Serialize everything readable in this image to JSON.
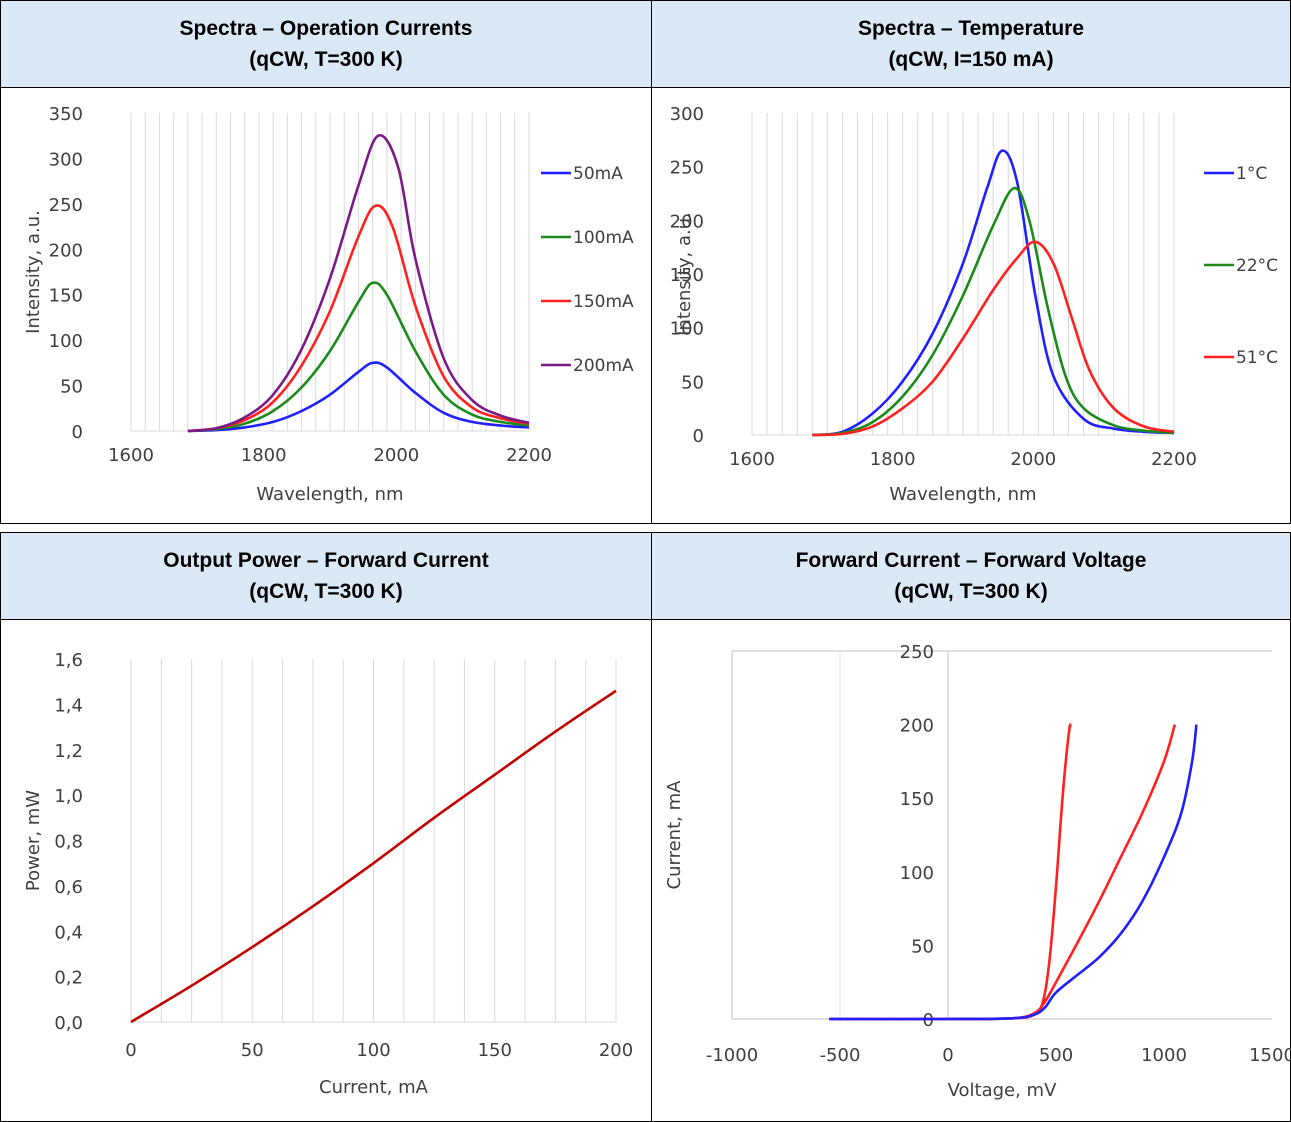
{
  "panels": [
    {
      "title": "Spectra – Operation Currents",
      "subtitle": "(qCW, T=300 K)"
    },
    {
      "title": "Spectra – Temperature",
      "subtitle": "(qCW, I=150 mA)"
    },
    {
      "title": "Output Power – Forward Current",
      "subtitle": "(qCW, T=300 K)"
    },
    {
      "title": "Forward Current – Forward Voltage",
      "subtitle": "(qCW, T=300 K)"
    }
  ],
  "chart_data": [
    {
      "type": "line",
      "xlabel": "Wavelength, nm",
      "ylabel": "Intensity, a.u.",
      "xlim": [
        1600,
        2300
      ],
      "ylim": [
        0,
        350
      ],
      "xticks": [
        "1600",
        "1800",
        "2000",
        "2200"
      ],
      "yticks": [
        "0",
        "50",
        "100",
        "150",
        "200",
        "250",
        "300",
        "350"
      ],
      "grid": "vertical",
      "legend": "right",
      "series": [
        {
          "name": "50mA",
          "color": "#1f1fff",
          "x": [
            1700,
            1750,
            1800,
            1850,
            1900,
            1950,
            2000,
            2025,
            2050,
            2100,
            2150,
            2200,
            2250,
            2300
          ],
          "values": [
            0,
            1,
            4,
            10,
            22,
            40,
            65,
            75,
            70,
            42,
            20,
            10,
            6,
            4
          ]
        },
        {
          "name": "100mA",
          "color": "#1a8a1a",
          "x": [
            1700,
            1750,
            1800,
            1850,
            1900,
            1950,
            2000,
            2025,
            2050,
            2100,
            2150,
            2200,
            2250,
            2300
          ],
          "values": [
            0,
            2,
            8,
            22,
            48,
            88,
            142,
            163,
            150,
            88,
            40,
            18,
            10,
            6
          ]
        },
        {
          "name": "150mA",
          "color": "#ff2020",
          "x": [
            1700,
            1750,
            1800,
            1850,
            1900,
            1950,
            2000,
            2030,
            2060,
            2100,
            2150,
            2200,
            2250,
            2300
          ],
          "values": [
            0,
            3,
            12,
            32,
            72,
            132,
            214,
            248,
            225,
            138,
            60,
            26,
            14,
            8
          ]
        },
        {
          "name": "200mA",
          "color": "#7a1a86",
          "x": [
            1700,
            1750,
            1800,
            1850,
            1900,
            1950,
            2000,
            2035,
            2070,
            2100,
            2150,
            2200,
            2250,
            2300
          ],
          "values": [
            0,
            3,
            15,
            40,
            90,
            168,
            270,
            325,
            290,
            190,
            80,
            34,
            17,
            9
          ]
        }
      ]
    },
    {
      "type": "line",
      "xlabel": "Wavelength, nm",
      "ylabel": "Intensity, a.u.",
      "xlim": [
        1600,
        2300
      ],
      "ylim": [
        0,
        300
      ],
      "xticks": [
        "1600",
        "1800",
        "2000",
        "2200"
      ],
      "yticks": [
        "0",
        "50",
        "100",
        "150",
        "200",
        "250",
        "300"
      ],
      "grid": "vertical",
      "legend": "right",
      "series": [
        {
          "name": "1°C",
          "color": "#1f1fff",
          "x": [
            1700,
            1750,
            1800,
            1850,
            1900,
            1950,
            1990,
            2015,
            2040,
            2070,
            2100,
            2150,
            2200,
            2250,
            2300
          ],
          "values": [
            0,
            3,
            20,
            50,
            95,
            160,
            230,
            265,
            235,
            130,
            55,
            15,
            6,
            3,
            2
          ]
        },
        {
          "name": "22°C",
          "color": "#1a8a1a",
          "x": [
            1700,
            1750,
            1800,
            1850,
            1900,
            1950,
            2000,
            2035,
            2060,
            2090,
            2120,
            2150,
            2200,
            2250,
            2300
          ],
          "values": [
            0,
            2,
            12,
            36,
            75,
            130,
            195,
            230,
            200,
            120,
            55,
            25,
            9,
            4,
            2
          ]
        },
        {
          "name": "51°C",
          "color": "#ff2020",
          "x": [
            1700,
            1750,
            1800,
            1850,
            1900,
            1950,
            2000,
            2040,
            2070,
            2100,
            2130,
            2160,
            2200,
            2250,
            2300
          ],
          "values": [
            0,
            1,
            8,
            25,
            50,
            90,
            135,
            165,
            180,
            160,
            110,
            60,
            25,
            8,
            3
          ]
        }
      ]
    },
    {
      "type": "line",
      "xlabel": "Current, mA",
      "ylabel": "Power, mW",
      "xlim": [
        0,
        200
      ],
      "ylim": [
        0,
        1.6
      ],
      "xticks": [
        "0",
        "50",
        "100",
        "150",
        "200"
      ],
      "yticks": [
        "0,0",
        "0,2",
        "0,4",
        "0,6",
        "0,8",
        "1,0",
        "1,2",
        "1,4",
        "1,6"
      ],
      "grid": "vertical",
      "series": [
        {
          "color": "#c00000",
          "x": [
            0,
            25,
            50,
            75,
            100,
            125,
            150,
            175,
            200
          ],
          "values": [
            0,
            0.16,
            0.33,
            0.51,
            0.7,
            0.9,
            1.09,
            1.28,
            1.46
          ]
        }
      ]
    },
    {
      "type": "line",
      "xlabel": "Voltage, mV",
      "ylabel": "Current, mA",
      "xlim": [
        -1000,
        1500
      ],
      "ylim": [
        0,
        250
      ],
      "xticks": [
        "-1000",
        "-500",
        "0",
        "500",
        "1000",
        "1500"
      ],
      "yticks": [
        "0",
        "50",
        "100",
        "150",
        "200",
        "250"
      ],
      "grid": "none",
      "series": [
        {
          "color": "#ff2020",
          "x": [
            -550,
            0,
            300,
            400,
            440,
            470,
            500,
            530,
            560,
            570
          ],
          "values": [
            0,
            0,
            0.5,
            3,
            12,
            40,
            90,
            150,
            195,
            200
          ]
        },
        {
          "color": "#ff2020",
          "x": [
            -550,
            0,
            300,
            400,
            450,
            500,
            600,
            700,
            800,
            900,
            1000,
            1050
          ],
          "values": [
            0,
            0,
            0.5,
            4,
            12,
            25,
            52,
            80,
            110,
            140,
            175,
            200
          ]
        },
        {
          "color": "#1f1fff",
          "x": [
            -550,
            0,
            300,
            400,
            450,
            500,
            600,
            700,
            800,
            900,
            1000,
            1080,
            1130,
            1150
          ],
          "values": [
            0,
            0,
            0.5,
            3,
            8,
            18,
            30,
            42,
            58,
            80,
            110,
            140,
            175,
            200
          ]
        }
      ]
    }
  ]
}
